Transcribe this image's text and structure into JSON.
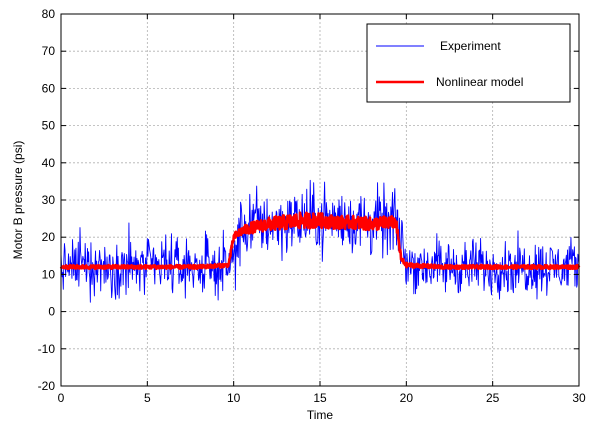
{
  "chart_data": {
    "type": "line",
    "title": "",
    "xlabel": "Time",
    "ylabel": "Motor B pressure  (psi)",
    "xlim": [
      0,
      30
    ],
    "ylim": [
      -20,
      80
    ],
    "xticks": [
      0,
      5,
      10,
      15,
      20,
      25,
      30
    ],
    "yticks": [
      -20,
      -10,
      0,
      10,
      20,
      30,
      40,
      50,
      60,
      70,
      80
    ],
    "grid": true,
    "legend_position": "top-right",
    "series": [
      {
        "name": "Experiment",
        "color": "#0000ff",
        "style": "noisy",
        "x": [
          0,
          2,
          4,
          6,
          8,
          9.8,
          10.2,
          11,
          13,
          15,
          17,
          19,
          19.5,
          20,
          22,
          24,
          26,
          28,
          30
        ],
        "values": [
          12,
          12,
          12,
          12,
          12,
          12,
          20,
          24,
          24,
          25,
          24,
          24,
          23,
          13,
          12,
          12,
          12,
          12,
          12
        ],
        "noise_amplitude": [
          9,
          9,
          9,
          9,
          9,
          9,
          11,
          11,
          11,
          11,
          11,
          11,
          11,
          9,
          9,
          9,
          9,
          9,
          9
        ]
      },
      {
        "name": "Nonlinear model",
        "color": "#ff0000",
        "style": "smooth",
        "x": [
          0,
          2,
          4,
          6,
          8,
          9.7,
          10.0,
          10.4,
          11,
          12,
          13,
          14,
          15,
          16,
          17,
          18,
          19,
          19.4,
          19.7,
          20,
          22,
          24,
          26,
          28,
          30
        ],
        "values": [
          12,
          12,
          12,
          12,
          12,
          12.5,
          20,
          21.5,
          22.5,
          23.5,
          24,
          24.5,
          24.5,
          24,
          24,
          23.5,
          24,
          24,
          14,
          12.5,
          12,
          12,
          12,
          12,
          12
        ],
        "noise_amplitude": [
          0.5,
          0.5,
          0.5,
          0.5,
          0.5,
          0.5,
          1,
          1.2,
          1.5,
          1.8,
          2,
          2.2,
          2,
          1.8,
          1.8,
          1.8,
          1.8,
          1.5,
          1,
          0.6,
          0.5,
          0.5,
          0.5,
          0.5,
          0.5
        ]
      }
    ]
  }
}
